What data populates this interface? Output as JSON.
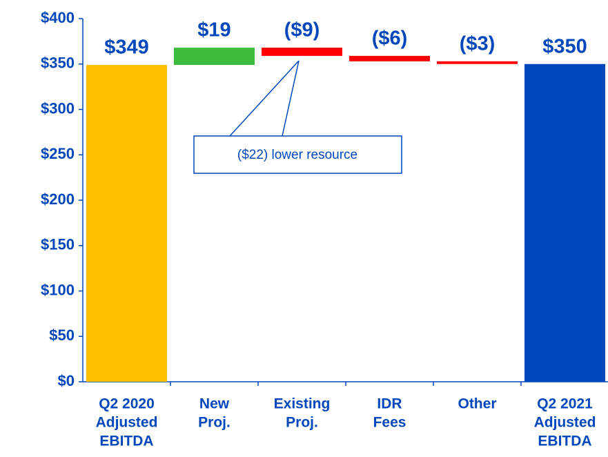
{
  "chart_data": {
    "type": "waterfall",
    "categories": [
      [
        "Q2 2020",
        "Adjusted",
        "EBITDA"
      ],
      [
        "New",
        "Proj."
      ],
      [
        "Existing",
        "Proj."
      ],
      [
        "IDR",
        "Fees"
      ],
      [
        "Other"
      ],
      [
        "Q2 2021",
        "Adjusted",
        "EBITDA"
      ]
    ],
    "values": [
      349,
      19,
      -9,
      -6,
      -3,
      350
    ],
    "value_labels": [
      "$349",
      "$19",
      "($9)",
      "($6)",
      "($3)",
      "$350"
    ],
    "measure": [
      "total",
      "relative",
      "relative",
      "relative",
      "relative",
      "total"
    ],
    "colors": [
      "#FFC000",
      "#3DBB3D",
      "#FF0000",
      "#FF0000",
      "#FF0000",
      "#0047BB"
    ],
    "ylim": [
      0,
      400
    ],
    "yticks": [
      {
        "value": 0,
        "label": "$0"
      },
      {
        "value": 50,
        "label": "$50"
      },
      {
        "value": 100,
        "label": "$100"
      },
      {
        "value": 150,
        "label": "$150"
      },
      {
        "value": 200,
        "label": "$200"
      },
      {
        "value": 250,
        "label": "$250"
      },
      {
        "value": 300,
        "label": "$300"
      },
      {
        "value": 350,
        "label": "$350"
      },
      {
        "value": 400,
        "label": "$400"
      }
    ],
    "annotation": "($22) lower resource"
  }
}
